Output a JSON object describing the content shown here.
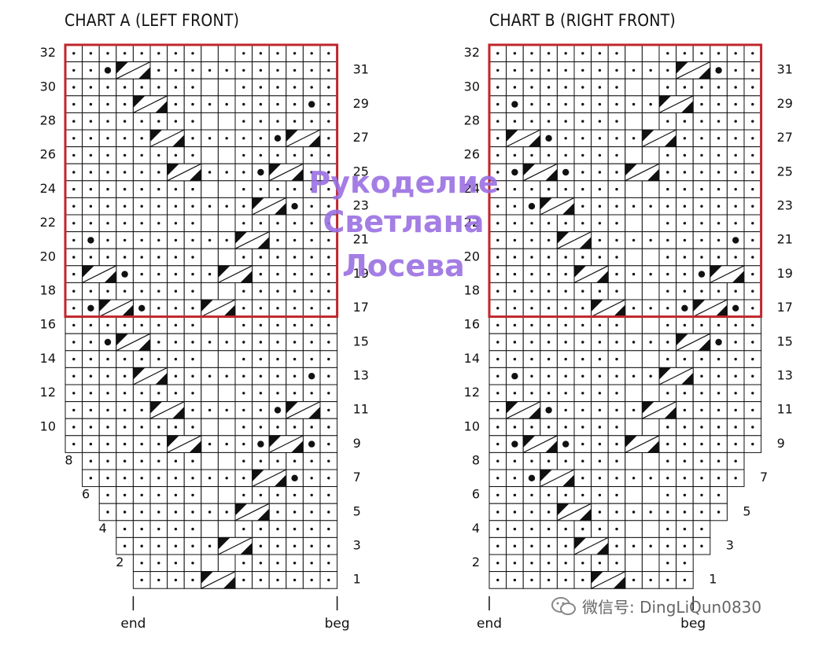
{
  "charts": [
    {
      "id": "a",
      "title": "CHART A (LEFT FRONT)",
      "left_label": "end",
      "right_label": "beg",
      "even_rows": [
        "32",
        "30",
        "28",
        "26",
        "24",
        "22",
        "20",
        "18",
        "16",
        "14",
        "12",
        "10",
        "8",
        "6",
        "4",
        "2"
      ],
      "odd_rows": [
        "31",
        "29",
        "27",
        "25",
        "23",
        "21",
        "19",
        "17",
        "15",
        "13",
        "11",
        "9",
        "7",
        "5",
        "3",
        "1"
      ]
    },
    {
      "id": "b",
      "title": "CHART B (RIGHT FRONT)",
      "left_label": "end",
      "right_label": "beg",
      "even_rows": [
        "32",
        "30",
        "28",
        "26",
        "24",
        "22",
        "20",
        "18",
        "16",
        "14",
        "12",
        "10",
        "8",
        "6",
        "4",
        "2"
      ],
      "odd_rows": [
        "31",
        "29",
        "27",
        "25",
        "23",
        "21",
        "19",
        "17",
        "15",
        "13",
        "11",
        "9",
        "7",
        "5",
        "3",
        "1"
      ]
    }
  ],
  "legend": {
    "stitch_symbols": [
      "purl-dot",
      "bobble",
      "cable-cross-left",
      "cable-cross-right"
    ]
  },
  "watermark": {
    "lines": [
      "Рукоделие",
      "Светлана",
      "Лосева"
    ],
    "color": "#9b6fe3"
  },
  "footer": {
    "wechat_label": "微信号: DingLiQun0830"
  },
  "colors": {
    "highlight_border": "#c0262b",
    "grid": "#111111"
  }
}
